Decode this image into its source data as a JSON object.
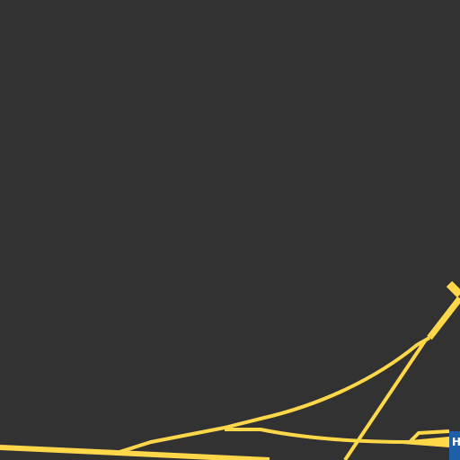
{
  "map": {
    "background_color": "#323232",
    "road_color": "#ffd84a",
    "shield_color": "#1f5ea8",
    "shield_label": "H"
  }
}
